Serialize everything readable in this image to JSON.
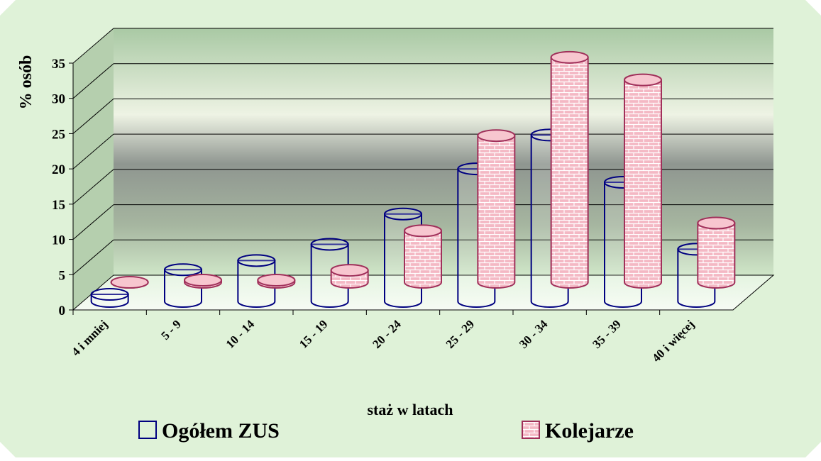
{
  "chart_data": {
    "type": "bar3d",
    "x_label": "staż w latach",
    "y_label": "% osób",
    "categories": [
      "4 i mniej",
      "5 - 9",
      "10 - 14",
      "15 - 19",
      "20 - 24",
      "25 - 29",
      "30 - 34",
      "35 - 39",
      "40 i więcej"
    ],
    "series": [
      {
        "name": "Ogółem ZUS",
        "color": "#000080",
        "values": [
          1,
          4.5,
          5.8,
          8.1,
          12.4,
          18.8,
          23.6,
          16.9,
          7.4
        ]
      },
      {
        "name": "Kolejarze",
        "color": "#a0305a",
        "values": [
          0,
          0.3,
          0.3,
          1.7,
          7.3,
          20.8,
          31.9,
          28.7,
          8.4
        ]
      }
    ],
    "ylim": [
      0,
      35
    ],
    "yticks": [
      0,
      5,
      10,
      15,
      20,
      25,
      30,
      35
    ],
    "grid": true
  }
}
